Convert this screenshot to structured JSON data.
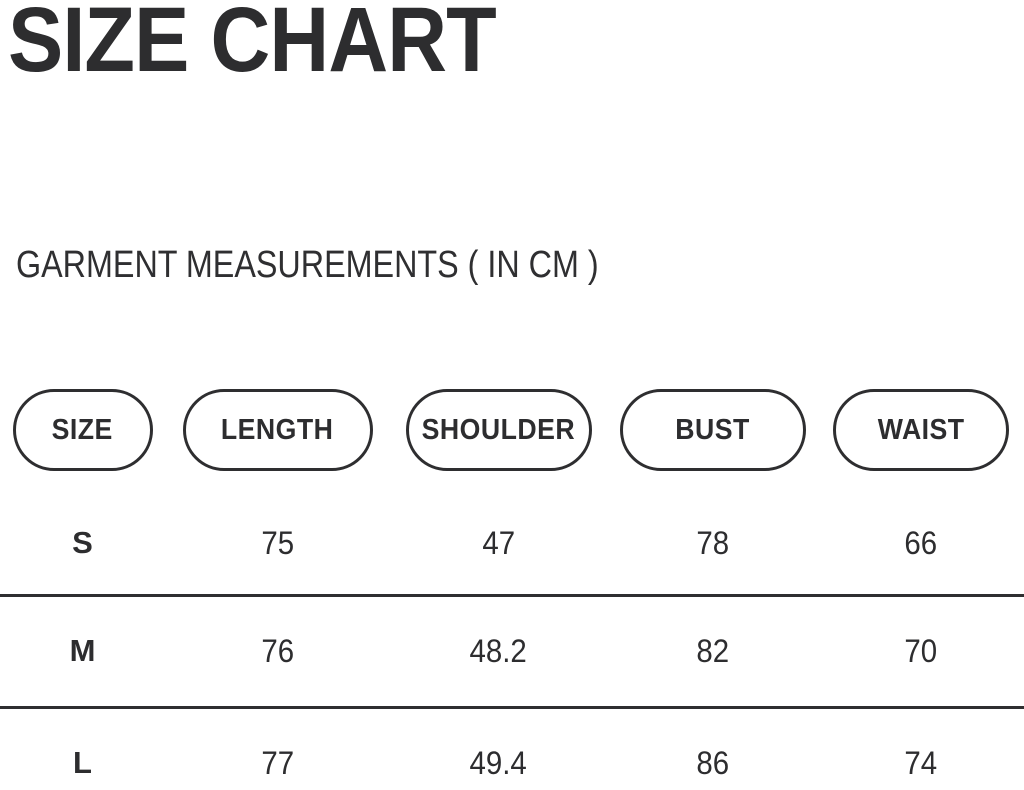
{
  "page": {
    "title": "SIZE CHART",
    "subtitle": "GARMENT MEASUREMENTS ( IN CM )"
  },
  "table": {
    "columns": [
      {
        "label": "SIZE"
      },
      {
        "label": "LENGTH"
      },
      {
        "label": "SHOULDER"
      },
      {
        "label": "BUST"
      },
      {
        "label": "WAIST"
      }
    ],
    "rows": [
      {
        "size": "S",
        "length": "75",
        "shoulder": "47",
        "bust": "78",
        "waist": "66"
      },
      {
        "size": "M",
        "length": "76",
        "shoulder": "48.2",
        "bust": "82",
        "waist": "70"
      },
      {
        "size": "L",
        "length": "77",
        "shoulder": "49.4",
        "bust": "86",
        "waist": "74"
      }
    ]
  },
  "colors": {
    "ink": "#2d2d2f",
    "background": "#ffffff",
    "rule": "#2f2f31"
  }
}
